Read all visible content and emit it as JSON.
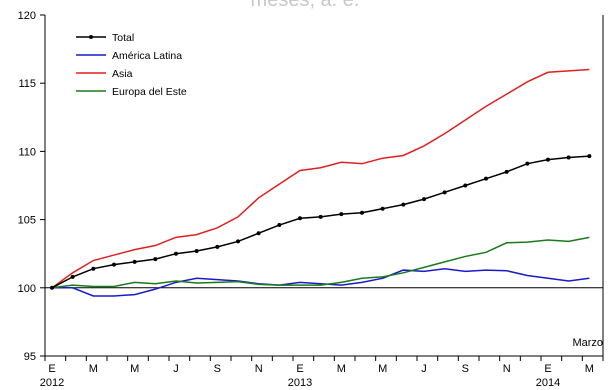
{
  "chart_data": {
    "type": "line",
    "title": "meses, a. e.",
    "annotation": "Marzo",
    "ylim": [
      95,
      120
    ],
    "yticks": [
      95,
      100,
      105,
      110,
      115,
      120
    ],
    "reference_line": 100,
    "x_tick_labels": [
      "E",
      "M",
      "M",
      "J",
      "S",
      "N",
      "E",
      "M",
      "M",
      "J",
      "S",
      "N",
      "E",
      "M"
    ],
    "year_labels": [
      {
        "text": "2012",
        "index": 0
      },
      {
        "text": "2013",
        "index": 12
      },
      {
        "text": "2014",
        "index": 24
      }
    ],
    "x": [
      "2012-01",
      "2012-02",
      "2012-03",
      "2012-04",
      "2012-05",
      "2012-06",
      "2012-07",
      "2012-08",
      "2012-09",
      "2012-10",
      "2012-11",
      "2012-12",
      "2013-01",
      "2013-02",
      "2013-03",
      "2013-04",
      "2013-05",
      "2013-06",
      "2013-07",
      "2013-08",
      "2013-09",
      "2013-10",
      "2013-11",
      "2013-12",
      "2014-01",
      "2014-02",
      "2014-03"
    ],
    "series": [
      {
        "name": "Total",
        "color": "#000000",
        "markers": true,
        "values": [
          100,
          100.8,
          101.4,
          101.7,
          101.9,
          102.1,
          102.5,
          102.7,
          103.0,
          103.4,
          104.0,
          104.6,
          105.1,
          105.2,
          105.4,
          105.5,
          105.8,
          106.1,
          106.5,
          107.0,
          107.5,
          108.0,
          108.5,
          109.1,
          109.4,
          109.55,
          109.65
        ]
      },
      {
        "name": "América Latina",
        "color": "#1a1acc",
        "markers": false,
        "values": [
          100,
          100.0,
          99.4,
          99.4,
          99.5,
          99.9,
          100.4,
          100.7,
          100.6,
          100.5,
          100.3,
          100.2,
          100.4,
          100.3,
          100.2,
          100.4,
          100.7,
          101.3,
          101.2,
          101.4,
          101.2,
          101.3,
          101.25,
          100.9,
          100.7,
          100.5,
          100.7
        ]
      },
      {
        "name": "Asia",
        "color": "#e02020",
        "markers": false,
        "values": [
          100,
          101.1,
          102.0,
          102.4,
          102.8,
          103.1,
          103.7,
          103.9,
          104.4,
          105.2,
          106.6,
          107.6,
          108.6,
          108.8,
          109.2,
          109.1,
          109.5,
          109.7,
          110.4,
          111.3,
          112.3,
          113.3,
          114.2,
          115.1,
          115.8,
          115.9,
          116.0
        ]
      },
      {
        "name": "Europa del Este",
        "color": "#1a7a1a",
        "markers": false,
        "values": [
          100,
          100.2,
          100.1,
          100.1,
          100.4,
          100.3,
          100.5,
          100.35,
          100.4,
          100.45,
          100.25,
          100.2,
          100.2,
          100.2,
          100.4,
          100.7,
          100.8,
          101.1,
          101.5,
          101.9,
          102.3,
          102.6,
          103.3,
          103.35,
          103.5,
          103.4,
          103.7
        ]
      }
    ],
    "legend_position": "top-left",
    "grid": false
  }
}
